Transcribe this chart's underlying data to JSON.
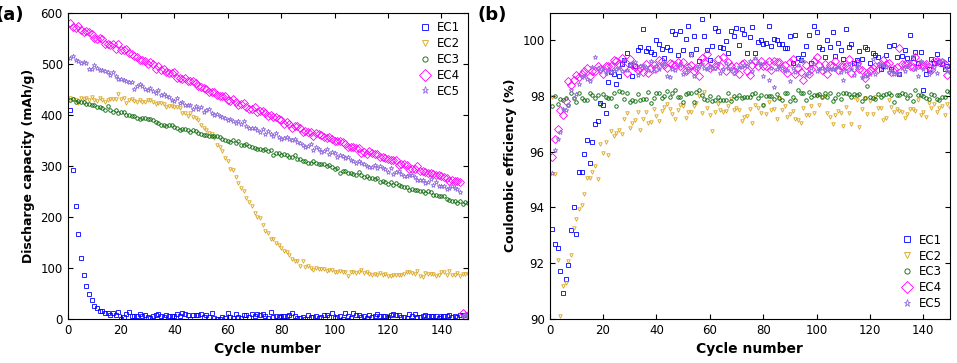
{
  "title_a": "(a)",
  "title_b": "(b)",
  "xlabel": "Cycle number",
  "ylabel_a": "Discharge capacity (mAh/g)",
  "ylabel_b": "Coulombic efficiency (%)",
  "xlim": [
    0,
    150
  ],
  "ylim_a": [
    0,
    600
  ],
  "ylim_b": [
    90,
    101
  ],
  "yticks_a": [
    0,
    100,
    200,
    300,
    400,
    500,
    600
  ],
  "yticks_b": [
    90,
    92,
    94,
    96,
    98,
    100
  ],
  "xticks": [
    0,
    20,
    40,
    60,
    80,
    100,
    120,
    140
  ],
  "colors": {
    "EC1": "#0000FF",
    "EC2": "#DAA520",
    "EC3": "#006400",
    "EC4": "#FF00FF",
    "EC5": "#9370DB"
  },
  "markers": {
    "EC1": "s",
    "EC2": "v",
    "EC3": "o",
    "EC4": "D",
    "EC5": "*"
  },
  "legend_labels": [
    "EC1",
    "EC2",
    "EC3",
    "EC4",
    "EC5"
  ],
  "marker_size": 2.5,
  "marker_edge_width": 0.6
}
